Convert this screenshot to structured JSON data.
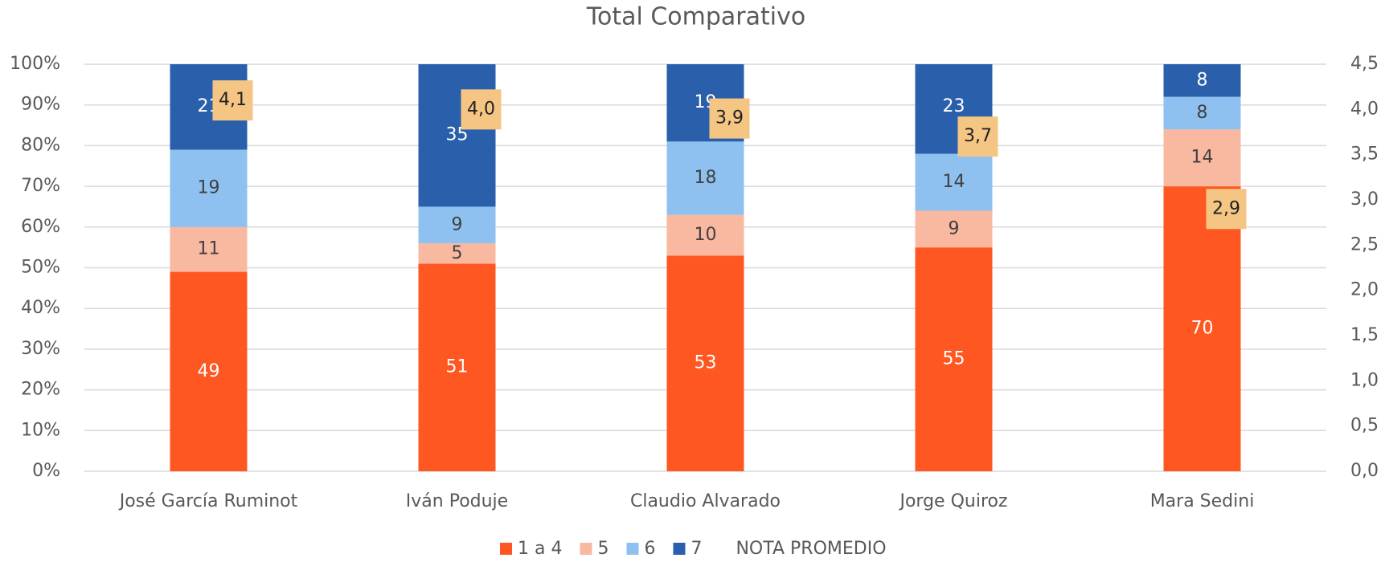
{
  "chart_data": {
    "type": "bar",
    "stacked": true,
    "title": "Total Comparativo",
    "categories": [
      "José García Ruminot",
      "Iván Poduje",
      "Claudio Alvarado",
      "Jorge Quiroz",
      "Mara Sedini"
    ],
    "series": [
      {
        "name": "1 a 4",
        "color": "#ff5722",
        "values": [
          49,
          51,
          53,
          55,
          70
        ]
      },
      {
        "name": "5",
        "color": "#f9b8a0",
        "values": [
          11,
          5,
          10,
          9,
          14
        ]
      },
      {
        "name": "6",
        "color": "#8ec1f0",
        "values": [
          19,
          9,
          18,
          14,
          8
        ]
      },
      {
        "name": "7",
        "color": "#2a5fac",
        "values": [
          21,
          35,
          19,
          23,
          8
        ]
      },
      {
        "name": "NOTA PROMEDIO",
        "color": "#f5c583",
        "axis": "y2",
        "values": [
          4.1,
          4.0,
          3.9,
          3.7,
          2.9
        ],
        "value_labels": [
          "4,1",
          "4,0",
          "3,9",
          "3,7",
          "2,9"
        ]
      }
    ],
    "ylim": [
      0,
      100
    ],
    "yticks": [
      {
        "value": 0,
        "label": "0%"
      },
      {
        "value": 10,
        "label": "10%"
      },
      {
        "value": 20,
        "label": "20%"
      },
      {
        "value": 30,
        "label": "30%"
      },
      {
        "value": 40,
        "label": "40%"
      },
      {
        "value": 50,
        "label": "50%"
      },
      {
        "value": 60,
        "label": "60%"
      },
      {
        "value": 70,
        "label": "70%"
      },
      {
        "value": 80,
        "label": "80%"
      },
      {
        "value": 90,
        "label": "90%"
      },
      {
        "value": 100,
        "label": "100%"
      }
    ],
    "y2lim": [
      0,
      4.5
    ],
    "y2ticks": [
      {
        "value": 0,
        "label": "0,0"
      },
      {
        "value": 0.5,
        "label": "0,5"
      },
      {
        "value": 1,
        "label": "1,0"
      },
      {
        "value": 1.5,
        "label": "1,5"
      },
      {
        "value": 2,
        "label": "2,0"
      },
      {
        "value": 2.5,
        "label": "2,5"
      },
      {
        "value": 3,
        "label": "3,0"
      },
      {
        "value": 3.5,
        "label": "3,5"
      },
      {
        "value": 4,
        "label": "4,0"
      },
      {
        "value": 4.5,
        "label": "4,5"
      }
    ],
    "grid": true,
    "legend": "bottom"
  }
}
